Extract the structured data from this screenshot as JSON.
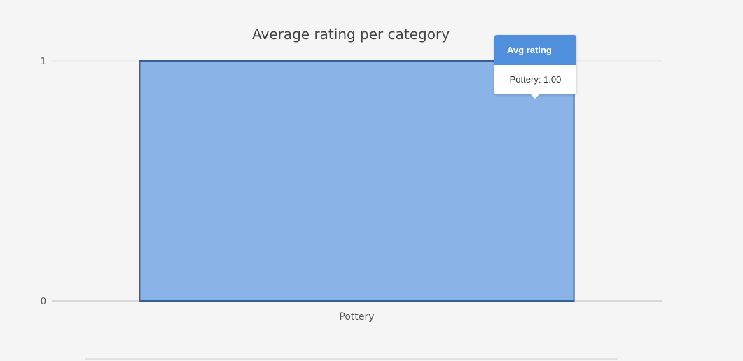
{
  "chart_data": {
    "type": "bar",
    "title": "Average rating per category",
    "categories": [
      "Pottery"
    ],
    "series": [
      {
        "name": "Avg rating",
        "values": [
          1
        ]
      }
    ],
    "ylim": [
      0,
      1
    ],
    "yticks": [
      0,
      1
    ],
    "grid": true,
    "bar_color": "#8ab4e8",
    "bar_border_color": "#3a5f94"
  },
  "tooltip": {
    "header": "Avg rating",
    "body": "Pottery: 1.00"
  }
}
